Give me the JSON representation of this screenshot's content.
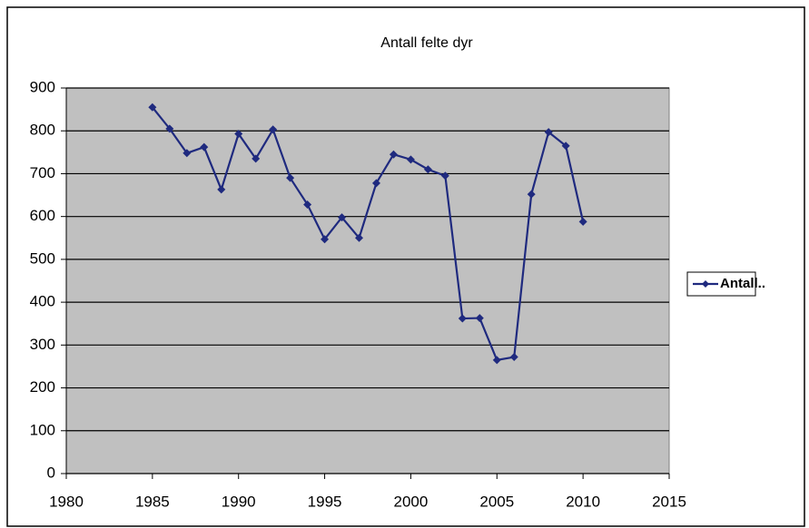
{
  "chart_data": {
    "type": "line",
    "title": "Antall felte dyr",
    "x": [
      1985,
      1986,
      1987,
      1988,
      1989,
      1990,
      1991,
      1992,
      1993,
      1994,
      1995,
      1996,
      1997,
      1998,
      1999,
      2000,
      2001,
      2002,
      2003,
      2004,
      2005,
      2006,
      2007,
      2008,
      2009,
      2010
    ],
    "series": [
      {
        "name": "Antall..",
        "color": "#1f2a7f",
        "values": [
          855,
          805,
          748,
          762,
          663,
          793,
          735,
          803,
          690,
          628,
          547,
          598,
          550,
          678,
          745,
          733,
          710,
          695,
          362,
          363,
          265,
          272,
          652,
          797,
          765,
          588
        ]
      }
    ],
    "xlim": [
      1980,
      2015
    ],
    "xticks": [
      1980,
      1985,
      1990,
      1995,
      2000,
      2005,
      2010,
      2015
    ],
    "ylim": [
      0,
      900
    ],
    "yticks": [
      0,
      100,
      200,
      300,
      400,
      500,
      600,
      700,
      800,
      900
    ],
    "grid": true,
    "legend": "right"
  }
}
